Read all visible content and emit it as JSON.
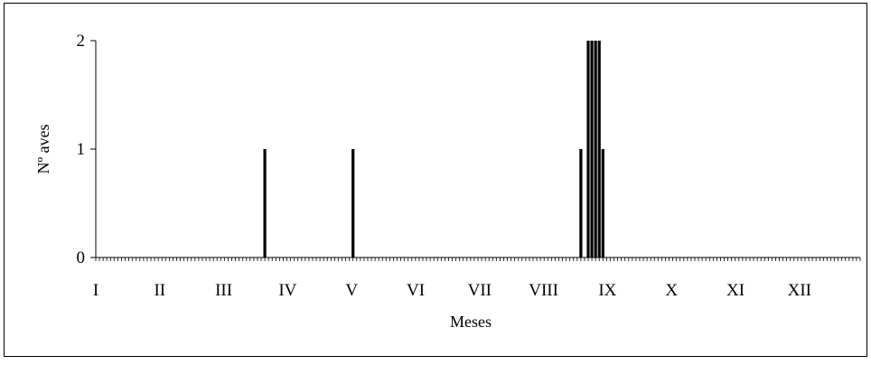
{
  "chart_data": {
    "type": "bar",
    "title": "",
    "xlabel": "Meses",
    "ylabel": "Nº aves",
    "ylim": [
      0,
      2
    ],
    "yticks": [
      "0",
      "1",
      "2"
    ],
    "month_labels": [
      "I",
      "II",
      "III",
      "IV",
      "V",
      "VI",
      "VII",
      "VIII",
      "IX",
      "X",
      "XI",
      "XII"
    ],
    "x_unit": "week",
    "x_range": [
      1,
      52
    ],
    "bars": [
      {
        "week": 12,
        "value": 1
      },
      {
        "week": 18,
        "value": 1
      },
      {
        "week": 33.5,
        "value": 1
      },
      {
        "week": 34,
        "value": 2
      },
      {
        "week": 34.25,
        "value": 2
      },
      {
        "week": 34.5,
        "value": 2
      },
      {
        "week": 34.75,
        "value": 2
      },
      {
        "week": 35,
        "value": 1
      }
    ],
    "grid": false,
    "legend": "none",
    "bar_color": "#000000"
  }
}
